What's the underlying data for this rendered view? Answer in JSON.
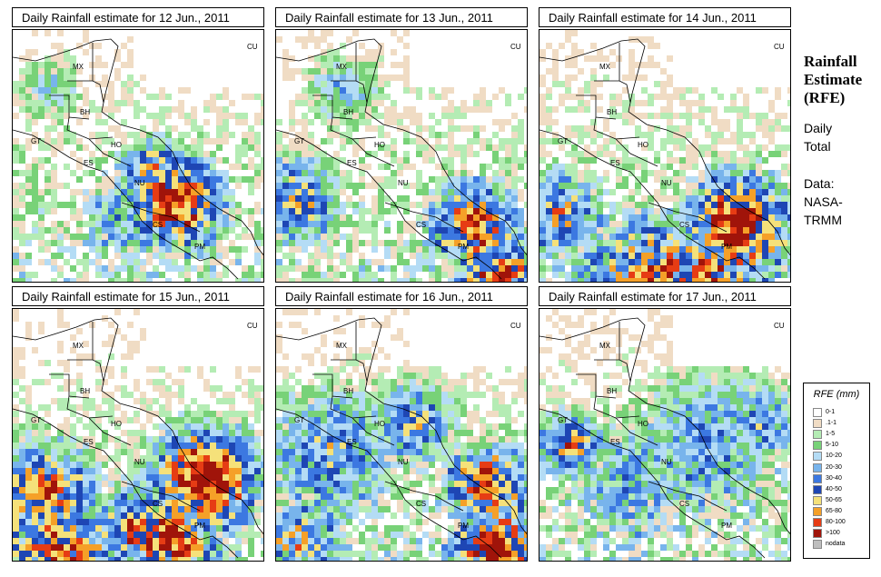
{
  "panels": [
    {
      "title": "Daily Rainfall estimate for  12 Jun., 2011"
    },
    {
      "title": "Daily Rainfall estimate for  13 Jun., 2011"
    },
    {
      "title": "Daily Rainfall estimate for  14 Jun., 2011"
    },
    {
      "title": "Daily Rainfall estimate for  15 Jun., 2011"
    },
    {
      "title": "Daily Rainfall estimate for  16 Jun., 2011"
    },
    {
      "title": "Daily Rainfall estimate for  17 Jun., 2011"
    }
  ],
  "country_labels": {
    "cu": "CU",
    "mx": "MX",
    "bh": "BH",
    "gt": "GT",
    "ho": "HO",
    "es": "ES",
    "nu": "NU",
    "cs": "CS",
    "pm": "PM"
  },
  "sidebar": {
    "title_line1": "Rainfall",
    "title_line2": "Estimate",
    "title_line3": "(RFE)",
    "daily_line1": "Daily",
    "daily_line2": "Total",
    "data_line1": "Data:",
    "data_line2": "NASA-",
    "data_line3": "TRMM"
  },
  "legend": {
    "title": "RFE (mm)",
    "entries": [
      {
        "label": "0-1",
        "color": "#ffffff"
      },
      {
        "label": ".1-1",
        "color": "#f0dcc4"
      },
      {
        "label": "1-5",
        "color": "#b4ecb4"
      },
      {
        "label": "5-10",
        "color": "#78d278"
      },
      {
        "label": "10-20",
        "color": "#b4dcf5"
      },
      {
        "label": "20-30",
        "color": "#78b4ec"
      },
      {
        "label": "30-40",
        "color": "#3c78e1"
      },
      {
        "label": "40-50",
        "color": "#1e46b4"
      },
      {
        "label": "50-65",
        "color": "#f5e17a"
      },
      {
        "label": "65-80",
        "color": "#f5a028"
      },
      {
        "label": "80-100",
        "color": "#e63c14"
      },
      {
        "label": ">100",
        "color": "#a0140a"
      },
      {
        "label": "nodata",
        "color": "#bebebe"
      }
    ]
  }
}
